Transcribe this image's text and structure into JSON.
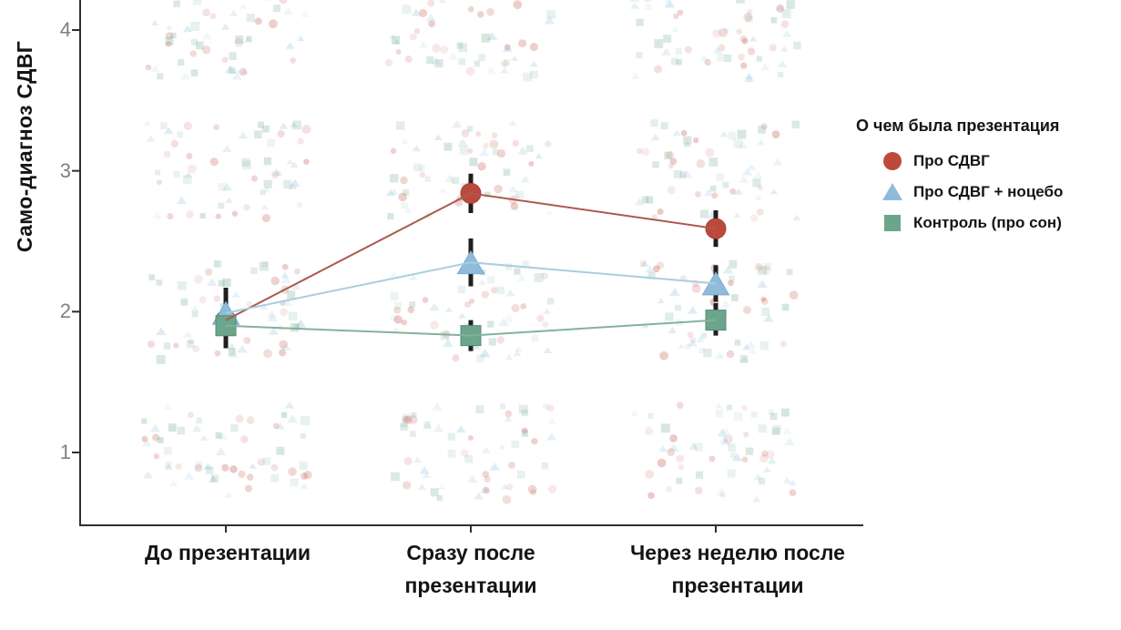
{
  "chart_data": {
    "type": "line",
    "title": "",
    "ylabel": "Само-диагноз СДВГ",
    "xlabel": "",
    "categories": [
      {
        "lines": [
          "До презентации"
        ]
      },
      {
        "lines": [
          "Сразу после",
          "презентации"
        ]
      },
      {
        "lines": [
          "Через неделю после",
          "презентации"
        ]
      }
    ],
    "yticks": [
      "1",
      "2",
      "3",
      "4"
    ],
    "ylim": [
      0.55,
      4.25
    ],
    "grid": false,
    "legend_title": "О чем была презентация",
    "legend_position": "right",
    "series": [
      {
        "name": "Про СДВГ",
        "marker": "circle",
        "color": "#bc4a3c",
        "edge_color": "#a23f33",
        "line_color": "#ab5a4d",
        "values": [
          1.94,
          2.84,
          2.59
        ],
        "ci_low": [
          1.77,
          2.7,
          2.46
        ],
        "ci_high": [
          2.17,
          2.98,
          2.72
        ]
      },
      {
        "name": "Про СДВГ + ноцебо",
        "marker": "triangle",
        "color": "#90bcdb",
        "edge_color": "#79a9cc",
        "line_color": "#a9cde0",
        "values": [
          1.99,
          2.35,
          2.2
        ],
        "ci_low": [
          1.82,
          2.18,
          2.07
        ],
        "ci_high": [
          2.17,
          2.52,
          2.33
        ]
      },
      {
        "name": "Контроль (про сон)",
        "marker": "square",
        "color": "#6ba58c",
        "edge_color": "#558d75",
        "line_color": "#82b29c",
        "values": [
          1.9,
          1.83,
          1.94
        ],
        "ci_low": [
          1.74,
          1.72,
          1.83
        ],
        "ci_high": [
          2.06,
          1.94,
          2.06
        ]
      }
    ],
    "error_bar_color": "#1f1f1f",
    "axis_color": "#2f2f2f",
    "tick_label_color": "#808080",
    "text_color": "#141414",
    "raw_points_jitter": {
      "bands": [
        1,
        2,
        3,
        4
      ],
      "points_per_series_per_band": 20,
      "x_half_width": 90,
      "y_half_height": 53,
      "opacity_range": [
        0.1,
        0.3
      ],
      "size_range": [
        6,
        10
      ]
    }
  }
}
